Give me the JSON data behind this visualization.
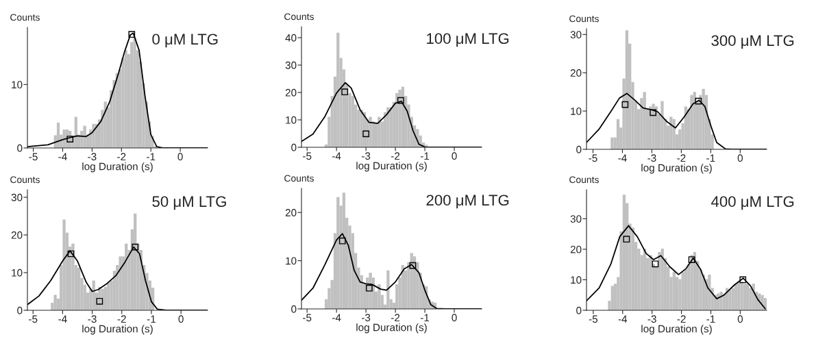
{
  "chart_data": [
    {
      "type": "histogram",
      "title": "0 μM LTG",
      "ylabel": "Counts",
      "xlabel": "log Duration (s)",
      "color": "#c0c0c0",
      "bins": [
        -4.3,
        -4.2,
        -4.1,
        -4.0,
        -3.9,
        -3.8,
        -3.7,
        -3.6,
        -3.5,
        -3.4,
        -3.3,
        -3.2,
        -3.1,
        -3.0,
        -2.9,
        -2.8,
        -2.7,
        -2.6,
        -2.5,
        -2.4,
        -2.3,
        -2.2,
        -2.1,
        -2.0,
        -1.9,
        -1.8,
        -1.7,
        -1.6,
        -1.5,
        -1.4,
        -1.3,
        -1.2,
        -1.1,
        -1.0,
        -0.9,
        -0.8
      ],
      "values": [
        2.0,
        4.0,
        2.1,
        2.9,
        2.9,
        2.7,
        1.9,
        4.9,
        2.1,
        2.7,
        3.5,
        2.1,
        2.9,
        3.8,
        3.8,
        4.5,
        6.0,
        7.3,
        6.4,
        9.1,
        10.7,
        11.8,
        12.4,
        14.2,
        15.4,
        14.8,
        16.7,
        17.4,
        15.4,
        13.6,
        10.2,
        7.3,
        4.2,
        1.9,
        0.3
      ],
      "series": [
        {
          "type": "line",
          "color": "#000000",
          "x": [
            -5.2,
            -4.5,
            -4.0,
            -3.7,
            -3.5,
            -3.2,
            -3.0,
            -2.7,
            -2.4,
            -2.1,
            -1.9,
            -1.7,
            -1.6,
            -1.4,
            -1.2,
            -1.0,
            -0.8,
            -0.6,
            -0.4,
            0.93
          ],
          "values": [
            0.2,
            0.5,
            1.3,
            1.7,
            1.9,
            1.8,
            2.4,
            4.2,
            7.3,
            11.8,
            15.1,
            17.8,
            18.1,
            15.4,
            8.2,
            2.1,
            0.2,
            0,
            0,
            0
          ]
        },
        {
          "type": "scatter",
          "color": "#000000",
          "marker": "square",
          "x": [
            -3.75,
            -1.65
          ],
          "values": [
            1.4,
            17.9
          ]
        }
      ],
      "xlim": [
        -5.2,
        0.93
      ],
      "ylim": [
        0,
        19
      ],
      "xticks": [
        -5,
        -4,
        -3,
        -2,
        -1,
        0
      ],
      "yticks": [
        0,
        10
      ]
    },
    {
      "type": "histogram",
      "title": "100 μM LTG",
      "ylabel": "Counts",
      "xlabel": "log Duration (s)",
      "color": "#c0c0c0",
      "bins": [
        -4.4,
        -4.3,
        -4.2,
        -4.1,
        -4.0,
        -3.9,
        -3.8,
        -3.7,
        -3.6,
        -3.5,
        -3.4,
        -3.3,
        -3.2,
        -3.1,
        -3.0,
        -2.9,
        -2.8,
        -2.7,
        -2.6,
        -2.5,
        -2.4,
        -2.3,
        -2.2,
        -2.1,
        -2.0,
        -1.9,
        -1.8,
        -1.7,
        -1.6,
        -1.5,
        -1.4,
        -1.3,
        -1.2,
        -1.1,
        -1.0,
        -0.9
      ],
      "values": [
        1.0,
        11.1,
        18.7,
        25.8,
        41.8,
        32.6,
        28.4,
        23.3,
        19.8,
        18.7,
        15.6,
        13.7,
        13.7,
        12.8,
        10.2,
        11.1,
        9.4,
        8.7,
        11.1,
        9.4,
        12.8,
        14.6,
        14.6,
        16.6,
        19.8,
        21.0,
        22.1,
        18.7,
        15.6,
        11.1,
        8.0,
        6.6,
        4.3,
        1.7,
        0.9
      ],
      "series": [
        {
          "type": "line",
          "color": "#000000",
          "x": [
            -5.19,
            -4.8,
            -4.4,
            -4.0,
            -3.7,
            -3.5,
            -3.2,
            -2.9,
            -2.6,
            -2.3,
            -2.0,
            -1.8,
            -1.6,
            -1.4,
            -1.2,
            -1.0,
            -0.7,
            -0.5,
            0.93
          ],
          "values": [
            2.1,
            4.8,
            11.1,
            19.8,
            23.6,
            21.6,
            13.7,
            9.1,
            8.7,
            11.9,
            16.1,
            16.8,
            13.2,
            6.0,
            1.1,
            0.1,
            0.0,
            0,
            0
          ]
        },
        {
          "type": "scatter",
          "color": "#000000",
          "marker": "square",
          "x": [
            -3.72,
            -3.0,
            -1.82
          ],
          "values": [
            20.2,
            4.9,
            17.1
          ]
        }
      ],
      "xlim": [
        -5.19,
        0.93
      ],
      "ylim": [
        0,
        44
      ],
      "xticks": [
        -5,
        -4,
        -3,
        -2,
        -1,
        0
      ],
      "yticks": [
        0,
        10,
        20,
        30,
        40
      ]
    },
    {
      "type": "histogram",
      "title": "300 μM LTG",
      "ylabel": "Counts",
      "xlabel": "log Duration (s)",
      "color": "#c0c0c0",
      "bins": [
        -4.4,
        -4.3,
        -4.2,
        -4.1,
        -4.0,
        -3.9,
        -3.8,
        -3.7,
        -3.6,
        -3.5,
        -3.4,
        -3.3,
        -3.2,
        -3.1,
        -3.0,
        -2.9,
        -2.8,
        -2.7,
        -2.6,
        -2.5,
        -2.4,
        -2.3,
        -2.2,
        -2.1,
        -2.0,
        -1.9,
        -1.8,
        -1.7,
        -1.6,
        -1.5,
        -1.4,
        -1.3,
        -1.2,
        -1.1,
        -1.0,
        -0.9
      ],
      "values": [
        3.1,
        3.1,
        7.9,
        5.7,
        18.5,
        31.1,
        27.6,
        17.6,
        12.6,
        10.5,
        13.4,
        15.0,
        10.5,
        11.2,
        11.9,
        11.2,
        9.2,
        12.6,
        7.9,
        6.2,
        8.5,
        7.9,
        3.9,
        5.2,
        6.8,
        11.2,
        10.5,
        14.2,
        15.0,
        12.6,
        14.2,
        15.8,
        14.2,
        7.9,
        3.9
      ],
      "series": [
        {
          "type": "line",
          "color": "#000000",
          "x": [
            -5.22,
            -4.8,
            -4.4,
            -4.1,
            -3.85,
            -3.6,
            -3.3,
            -3.0,
            -2.8,
            -2.5,
            -2.2,
            -1.9,
            -1.6,
            -1.4,
            -1.2,
            -1.0,
            -0.8,
            -0.5,
            -0.3,
            0.9
          ],
          "values": [
            1.8,
            5.2,
            9.8,
            13.4,
            14.6,
            13.0,
            10.8,
            10.3,
            9.8,
            7.3,
            5.6,
            8.5,
            11.9,
            12.8,
            11.2,
            6.2,
            1.8,
            0.1,
            0,
            0
          ]
        },
        {
          "type": "scatter",
          "color": "#000000",
          "marker": "square",
          "x": [
            -3.91,
            -2.96,
            -1.42
          ],
          "values": [
            11.7,
            9.6,
            12.6
          ]
        }
      ],
      "xlim": [
        -5.22,
        0.9
      ],
      "ylim": [
        0,
        31.5
      ],
      "xticks": [
        -5,
        -4,
        -3,
        -2,
        -1,
        0
      ],
      "yticks": [
        0,
        10,
        20,
        30
      ]
    },
    {
      "type": "histogram",
      "title": "50 μM LTG",
      "ylabel": "Counts",
      "xlabel": "log Duration (s)",
      "color": "#c0c0c0",
      "bins": [
        -4.4,
        -4.3,
        -4.2,
        -4.1,
        -4.0,
        -3.9,
        -3.8,
        -3.7,
        -3.6,
        -3.5,
        -3.4,
        -3.3,
        -3.2,
        -3.1,
        -3.0,
        -2.9,
        -2.8,
        -2.7,
        -2.6,
        -2.5,
        -2.4,
        -2.3,
        -2.2,
        -2.1,
        -2.0,
        -1.9,
        -1.8,
        -1.7,
        -1.6,
        -1.5,
        -1.4,
        -1.3,
        -1.2,
        -1.1,
        -1.0,
        -0.9
      ],
      "values": [
        2.0,
        4.1,
        3.1,
        12.0,
        24.1,
        20.6,
        16.9,
        17.7,
        12.0,
        11.3,
        8.6,
        6.8,
        4.7,
        5.7,
        7.9,
        4.7,
        6.2,
        5.7,
        6.2,
        7.4,
        7.9,
        10.5,
        12.0,
        14.3,
        14.3,
        17.7,
        16.0,
        21.5,
        25.7,
        17.7,
        16.0,
        12.0,
        9.9,
        7.9,
        6.0
      ],
      "series": [
        {
          "type": "line",
          "color": "#000000",
          "x": [
            -5.19,
            -4.8,
            -4.4,
            -4.0,
            -3.75,
            -3.5,
            -3.2,
            -3.0,
            -2.8,
            -2.5,
            -2.2,
            -1.9,
            -1.6,
            -1.4,
            -1.2,
            -1.0,
            -0.8,
            -0.5,
            -0.4,
            0.9
          ],
          "values": [
            1.5,
            3.8,
            7.9,
            13.1,
            15.8,
            13.1,
            7.4,
            5.0,
            5.5,
            7.1,
            9.2,
            12.7,
            16.8,
            15.0,
            7.9,
            2.3,
            0.3,
            0,
            0,
            0
          ]
        },
        {
          "type": "scatter",
          "color": "#000000",
          "marker": "square",
          "x": [
            -3.72,
            -2.75,
            -1.55
          ],
          "values": [
            15.0,
            2.4,
            16.8
          ]
        }
      ],
      "xlim": [
        -5.19,
        0.9
      ],
      "ylim": [
        0,
        32
      ],
      "xticks": [
        -5,
        -4,
        -3,
        -2,
        -1,
        0
      ],
      "yticks": [
        0,
        10,
        20,
        30
      ]
    },
    {
      "type": "histogram",
      "title": "200 μM LTG",
      "ylabel": "Counts",
      "xlabel": "log Duration (s)",
      "color": "#c0c0c0",
      "bins": [
        -4.4,
        -4.3,
        -4.2,
        -4.1,
        -4.0,
        -3.9,
        -3.8,
        -3.7,
        -3.6,
        -3.5,
        -3.4,
        -3.3,
        -3.2,
        -3.1,
        -3.0,
        -2.9,
        -2.8,
        -2.7,
        -2.6,
        -2.5,
        -2.4,
        -2.3,
        -2.2,
        -2.1,
        -2.0,
        -1.9,
        -1.8,
        -1.7,
        -1.6,
        -1.5,
        -1.4,
        -1.3,
        -1.2,
        -1.1,
        -1.0,
        -0.9,
        -0.8,
        -0.7,
        -0.6
      ],
      "values": [
        2.0,
        4.3,
        6.0,
        15.7,
        23.2,
        21.4,
        24.1,
        18.9,
        17.3,
        15.7,
        11.6,
        8.6,
        7.0,
        5.1,
        6.5,
        7.5,
        6.5,
        3.6,
        5.1,
        2.9,
        0.9,
        8.0,
        2.0,
        1.3,
        5.1,
        6.5,
        9.1,
        8.0,
        9.7,
        11.6,
        10.9,
        9.7,
        7.5,
        5.1,
        4.7,
        2.0,
        1.5,
        1.3
      ],
      "series": [
        {
          "type": "line",
          "color": "#000000",
          "x": [
            -5.19,
            -4.8,
            -4.4,
            -4.0,
            -3.8,
            -3.6,
            -3.4,
            -3.2,
            -3.0,
            -2.8,
            -2.5,
            -2.3,
            -2.0,
            -1.7,
            -1.45,
            -1.2,
            -1.0,
            -0.8,
            -0.6,
            -0.3,
            -0.1,
            0.93
          ],
          "values": [
            1.8,
            4.3,
            9.1,
            14.3,
            15.6,
            13.2,
            8.0,
            5.6,
            5.2,
            5.1,
            4.1,
            3.9,
            5.6,
            8.3,
            9.2,
            7.5,
            3.9,
            0.9,
            0.1,
            0,
            0,
            0
          ]
        },
        {
          "type": "scatter",
          "color": "#000000",
          "marker": "square",
          "x": [
            -3.8,
            -2.89,
            -1.41
          ],
          "values": [
            14.1,
            4.3,
            9.0
          ]
        }
      ],
      "xlim": [
        -5.19,
        0.93
      ],
      "ylim": [
        0,
        25
      ],
      "xticks": [
        -5,
        -4,
        -3,
        -2,
        -1,
        0
      ],
      "yticks": [
        0,
        10,
        20
      ]
    },
    {
      "type": "histogram",
      "title": "400 μM LTG",
      "ylabel": "Counts",
      "xlabel": "log Duration (s)",
      "color": "#c0c0c0",
      "bins": [
        -4.5,
        -4.4,
        -4.3,
        -4.2,
        -4.1,
        -4.0,
        -3.9,
        -3.8,
        -3.7,
        -3.6,
        -3.5,
        -3.4,
        -3.3,
        -3.2,
        -3.1,
        -3.0,
        -2.9,
        -2.8,
        -2.7,
        -2.6,
        -2.5,
        -2.4,
        -2.3,
        -2.2,
        -2.1,
        -2.0,
        -1.9,
        -1.8,
        -1.7,
        -1.6,
        -1.5,
        -1.4,
        -1.3,
        -1.2,
        -1.1,
        -1.0,
        -0.9,
        -0.8,
        -0.7,
        -0.6,
        -0.5,
        -0.4,
        -0.3,
        -0.2,
        -0.1,
        0.0,
        0.1,
        0.2,
        0.3,
        0.4,
        0.5,
        0.6,
        0.7,
        0.8,
        0.9
      ],
      "values": [
        3.1,
        8.0,
        8.7,
        10.9,
        25.9,
        37.9,
        35.1,
        28.4,
        27.1,
        22.4,
        20.2,
        18.1,
        20.2,
        17.1,
        18.1,
        15.2,
        14.3,
        19.1,
        20.2,
        17.1,
        14.3,
        10.9,
        12.6,
        10.9,
        10.2,
        12.6,
        13.4,
        15.2,
        18.1,
        19.1,
        16.2,
        13.4,
        11.7,
        10.2,
        11.7,
        7.3,
        5.0,
        5.5,
        6.1,
        5.5,
        7.3,
        6.7,
        7.3,
        8.7,
        9.4,
        9.4,
        8.7,
        8.7,
        7.3,
        8.7,
        6.1,
        5.5,
        5.0,
        4.0
      ],
      "series": [
        {
          "type": "line",
          "color": "#000000",
          "x": [
            -5.23,
            -4.8,
            -4.4,
            -4.1,
            -3.8,
            -3.5,
            -3.2,
            -2.95,
            -2.7,
            -2.4,
            -2.1,
            -1.85,
            -1.6,
            -1.35,
            -1.1,
            -0.8,
            -0.55,
            -0.2,
            0.1,
            0.35,
            0.6,
            0.85
          ],
          "values": [
            3.1,
            7.3,
            15.2,
            24.1,
            27.7,
            24.1,
            18.6,
            16.6,
            17.9,
            14.3,
            11.7,
            13.6,
            17.1,
            13.4,
            7.3,
            3.8,
            5.0,
            8.3,
            10.5,
            8.0,
            3.5,
            0.5
          ]
        },
        {
          "type": "scatter",
          "color": "#000000",
          "marker": "square",
          "x": [
            -3.87,
            -2.89,
            -1.65,
            0.09
          ],
          "values": [
            23.3,
            15.2,
            16.6,
            10.0
          ]
        }
      ],
      "xlim": [
        -5.23,
        0.9
      ],
      "ylim": [
        0,
        39.5
      ],
      "xticks": [
        -5,
        -4,
        -3,
        -2,
        -1,
        0
      ],
      "yticks": [
        0,
        10,
        20,
        30
      ]
    }
  ]
}
